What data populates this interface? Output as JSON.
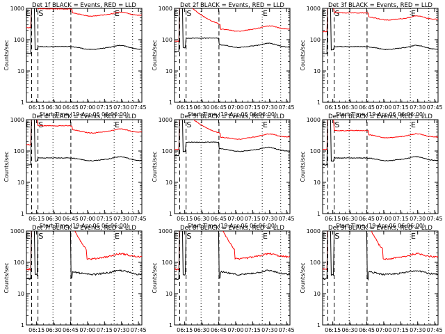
{
  "figure": {
    "panels": [
      {
        "title": "Det 1f BLACK = Events, RED = LLD",
        "events_level": 60,
        "lld_level": 600,
        "peak_style": "early"
      },
      {
        "title": "Det 2f BLACK = Events, RED = LLD",
        "events_level": 70,
        "lld_level": 220,
        "peak_style": "broad"
      },
      {
        "title": "Det 3f BLACK = Events, RED = LLD",
        "events_level": 60,
        "lld_level": 450,
        "peak_style": "early"
      },
      {
        "title": "Det 4f BLACK = Events, RED = LLD",
        "events_level": 60,
        "lld_level": 400,
        "peak_style": "early"
      },
      {
        "title": "Det 5f BLACK = Events, RED = LLD",
        "events_level": 120,
        "lld_level": 280,
        "peak_style": "broad"
      },
      {
        "title": "Det 6f BLACK = Events, RED = LLD",
        "events_level": 60,
        "lld_level": 280,
        "peak_style": "early"
      },
      {
        "title": "Det 7f BLACK = Events, RED = LLD",
        "events_level": 50,
        "lld_level": 150,
        "peak_style": "mid"
      },
      {
        "title": "Det 8f BLACK = Events, RED = LLD",
        "events_level": 50,
        "lld_level": 150,
        "peak_style": "mid"
      },
      {
        "title": "Det 9f BLACK = Events, RED = LLD",
        "events_level": 50,
        "lld_level": 150,
        "peak_style": "mid"
      }
    ],
    "x_tick_labels": [
      "06:15",
      "06:30",
      "06:45",
      "07:00",
      "07:15",
      "07:30",
      "07:45"
    ],
    "y_tick_labels": [
      "1",
      "10",
      "100",
      "1000"
    ],
    "ylabel": "Counts/sec",
    "xlabel": "Start Time (19-Apr-06 06:06:00)",
    "markers": {
      "start": "S",
      "end": "E"
    },
    "colors": {
      "events": "#000000",
      "lld": "#ff0000"
    }
  },
  "chart_data": {
    "type": "line",
    "title": "",
    "xlabel": "Start Time (19-Apr-06 06:06:00)",
    "ylabel": "Counts/sec",
    "x_range_minutes_after_start": [
      0,
      102
    ],
    "ylim": [
      1,
      1000
    ],
    "y_scale": "log",
    "series": [
      {
        "name": "BLACK = Events",
        "color": "#000000"
      },
      {
        "name": "RED = LLD",
        "color": "#ff0000"
      }
    ]
  }
}
